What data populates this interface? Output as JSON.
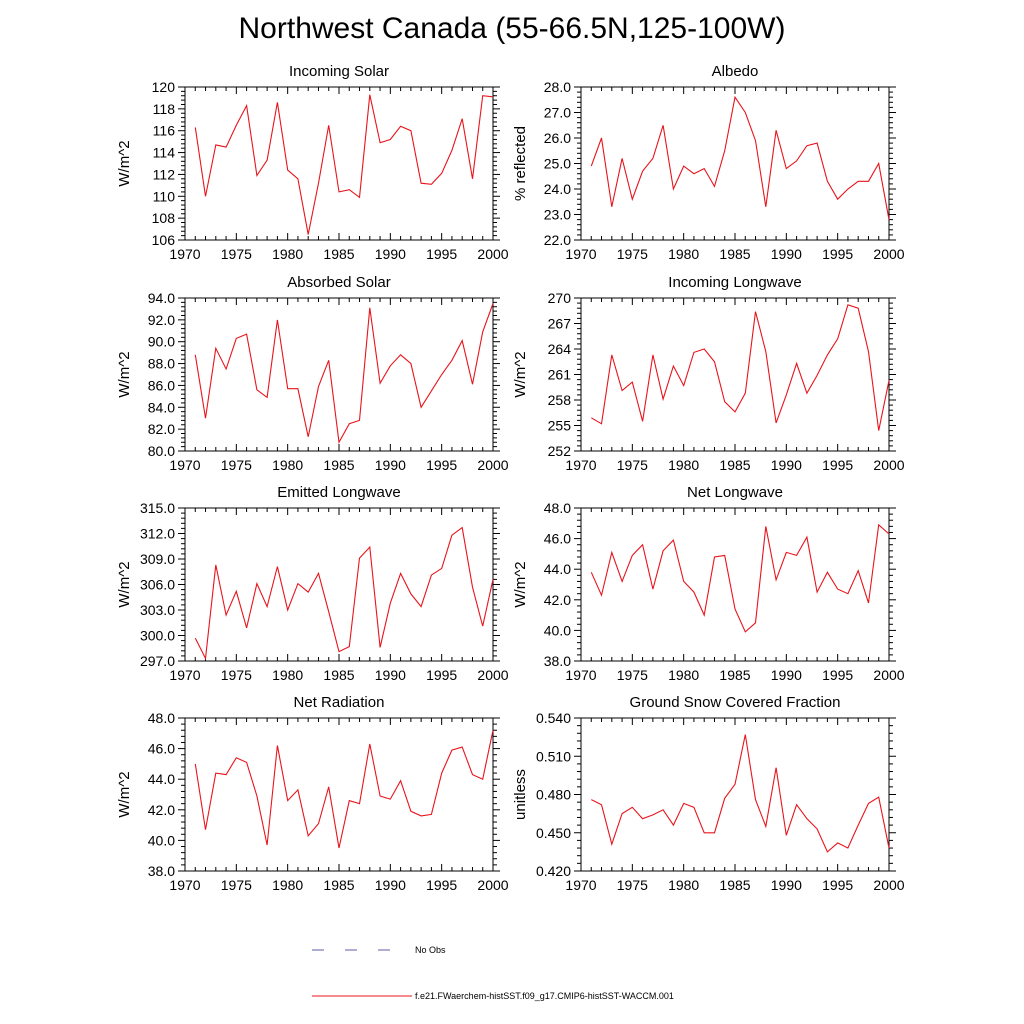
{
  "title": "Northwest Canada (55-66.5N,125-100W)",
  "colors": {
    "model": "#e8141c",
    "obs": "#5b5ea6"
  },
  "legend": {
    "obs_label": "No Obs",
    "model_label": "f.e21.FWaerchem-histSST.f09_g17.CMIP6-histSST-WACCM.001"
  },
  "chart_data": [
    {
      "type": "line",
      "title": "Incoming Solar",
      "ylabel": "W/m^2",
      "xlim": [
        1970,
        2000
      ],
      "ylim": [
        106,
        120
      ],
      "xticks": [
        1970,
        1975,
        1980,
        1985,
        1990,
        1995,
        2000
      ],
      "yticks": [
        106,
        108,
        110,
        112,
        114,
        116,
        118,
        120
      ],
      "ytick_labels": [
        "106",
        "108",
        "110",
        "112",
        "114",
        "116",
        "118",
        "120"
      ],
      "x": [
        1971,
        1972,
        1973,
        1974,
        1975,
        1976,
        1977,
        1978,
        1979,
        1980,
        1981,
        1982,
        1983,
        1984,
        1985,
        1986,
        1987,
        1988,
        1989,
        1990,
        1991,
        1992,
        1993,
        1994,
        1995,
        1996,
        1997,
        1998,
        1999,
        2000
      ],
      "series": [
        {
          "values": [
            116.3,
            110.0,
            114.7,
            114.5,
            116.5,
            118.3,
            111.9,
            113.3,
            118.6,
            112.4,
            111.6,
            106.5,
            111.2,
            116.5,
            110.4,
            110.6,
            109.9,
            119.3,
            114.9,
            115.2,
            116.4,
            116.0,
            111.2,
            111.1,
            112.1,
            114.2,
            117.1,
            111.6,
            119.2,
            119.1
          ]
        }
      ]
    },
    {
      "type": "line",
      "title": "Albedo",
      "ylabel": "% reflected",
      "xlim": [
        1970,
        2000
      ],
      "ylim": [
        22,
        28
      ],
      "xticks": [
        1970,
        1975,
        1980,
        1985,
        1990,
        1995,
        2000
      ],
      "yticks": [
        22,
        23,
        24,
        25,
        26,
        27,
        28
      ],
      "ytick_labels": [
        "22.0",
        "23.0",
        "24.0",
        "25.0",
        "26.0",
        "27.0",
        "28.0"
      ],
      "x": [
        1971,
        1972,
        1973,
        1974,
        1975,
        1976,
        1977,
        1978,
        1979,
        1980,
        1981,
        1982,
        1983,
        1984,
        1985,
        1986,
        1987,
        1988,
        1989,
        1990,
        1991,
        1992,
        1993,
        1994,
        1995,
        1996,
        1997,
        1998,
        1999,
        2000
      ],
      "series": [
        {
          "values": [
            24.9,
            26.0,
            23.3,
            25.2,
            23.6,
            24.7,
            25.2,
            26.5,
            24.0,
            24.9,
            24.6,
            24.8,
            24.1,
            25.5,
            27.6,
            27.0,
            25.9,
            23.3,
            26.3,
            24.8,
            25.1,
            25.7,
            25.8,
            24.3,
            23.6,
            24.0,
            24.3,
            24.3,
            25.0,
            22.8
          ]
        }
      ]
    },
    {
      "type": "line",
      "title": "Absorbed Solar",
      "ylabel": "W/m^2",
      "xlim": [
        1970,
        2000
      ],
      "ylim": [
        80,
        94
      ],
      "xticks": [
        1970,
        1975,
        1980,
        1985,
        1990,
        1995,
        2000
      ],
      "yticks": [
        80,
        82,
        84,
        86,
        88,
        90,
        92,
        94
      ],
      "ytick_labels": [
        "80.0",
        "82.0",
        "84.0",
        "86.0",
        "88.0",
        "90.0",
        "92.0",
        "94.0"
      ],
      "x": [
        1971,
        1972,
        1973,
        1974,
        1975,
        1976,
        1977,
        1978,
        1979,
        1980,
        1981,
        1982,
        1983,
        1984,
        1985,
        1986,
        1987,
        1988,
        1989,
        1990,
        1991,
        1992,
        1993,
        1994,
        1995,
        1996,
        1997,
        1998,
        1999,
        2000
      ],
      "series": [
        {
          "values": [
            88.8,
            83.0,
            89.4,
            87.5,
            90.3,
            90.7,
            85.6,
            84.9,
            92.0,
            85.7,
            85.7,
            81.3,
            85.9,
            88.3,
            80.8,
            82.5,
            82.8,
            93.1,
            86.2,
            87.8,
            88.8,
            88.0,
            84.0,
            85.5,
            87.0,
            88.3,
            90.1,
            86.1,
            90.9,
            93.5
          ]
        }
      ]
    },
    {
      "type": "line",
      "title": "Incoming Longwave",
      "ylabel": "W/m^2",
      "xlim": [
        1970,
        2000
      ],
      "ylim": [
        252,
        270
      ],
      "xticks": [
        1970,
        1975,
        1980,
        1985,
        1990,
        1995,
        2000
      ],
      "yticks": [
        252,
        255,
        258,
        261,
        264,
        267,
        270
      ],
      "ytick_labels": [
        "252",
        "255",
        "258",
        "261",
        "264",
        "267",
        "270"
      ],
      "x": [
        1971,
        1972,
        1973,
        1974,
        1975,
        1976,
        1977,
        1978,
        1979,
        1980,
        1981,
        1982,
        1983,
        1984,
        1985,
        1986,
        1987,
        1988,
        1989,
        1990,
        1991,
        1992,
        1993,
        1994,
        1995,
        1996,
        1997,
        1998,
        1999,
        2000
      ],
      "series": [
        {
          "values": [
            255.9,
            255.2,
            263.3,
            259.1,
            260.1,
            255.5,
            263.3,
            258.1,
            262.0,
            259.7,
            263.6,
            264.0,
            262.5,
            257.8,
            256.6,
            258.8,
            268.4,
            263.7,
            255.3,
            258.6,
            262.3,
            258.8,
            260.9,
            263.3,
            265.2,
            269.2,
            268.8,
            263.7,
            254.4,
            260.3
          ]
        }
      ]
    },
    {
      "type": "line",
      "title": "Emitted Longwave",
      "ylabel": "W/m^2",
      "xlim": [
        1970,
        2000
      ],
      "ylim": [
        297,
        315
      ],
      "xticks": [
        1970,
        1975,
        1980,
        1985,
        1990,
        1995,
        2000
      ],
      "yticks": [
        297,
        300,
        303,
        306,
        309,
        312,
        315
      ],
      "ytick_labels": [
        "297.0",
        "300.0",
        "303.0",
        "306.0",
        "309.0",
        "312.0",
        "315.0"
      ],
      "x": [
        1971,
        1972,
        1973,
        1974,
        1975,
        1976,
        1977,
        1978,
        1979,
        1980,
        1981,
        1982,
        1983,
        1984,
        1985,
        1986,
        1987,
        1988,
        1989,
        1990,
        1991,
        1992,
        1993,
        1994,
        1995,
        1996,
        1997,
        1998,
        1999,
        2000
      ],
      "series": [
        {
          "values": [
            299.7,
            297.3,
            308.3,
            302.4,
            305.2,
            300.9,
            306.1,
            303.4,
            308.1,
            303.0,
            306.1,
            305.1,
            307.3,
            302.8,
            298.1,
            298.7,
            309.1,
            310.4,
            298.6,
            303.8,
            307.3,
            304.9,
            303.4,
            307.1,
            307.9,
            311.8,
            312.7,
            305.7,
            301.1,
            306.6
          ]
        }
      ]
    },
    {
      "type": "line",
      "title": "Net Longwave",
      "ylabel": "W/m^2",
      "xlim": [
        1970,
        2000
      ],
      "ylim": [
        38,
        48
      ],
      "xticks": [
        1970,
        1975,
        1980,
        1985,
        1990,
        1995,
        2000
      ],
      "yticks": [
        38,
        40,
        42,
        44,
        46,
        48
      ],
      "ytick_labels": [
        "38.0",
        "40.0",
        "42.0",
        "44.0",
        "46.0",
        "48.0"
      ],
      "x": [
        1971,
        1972,
        1973,
        1974,
        1975,
        1976,
        1977,
        1978,
        1979,
        1980,
        1981,
        1982,
        1983,
        1984,
        1985,
        1986,
        1987,
        1988,
        1989,
        1990,
        1991,
        1992,
        1993,
        1994,
        1995,
        1996,
        1997,
        1998,
        1999,
        2000
      ],
      "series": [
        {
          "values": [
            43.8,
            42.3,
            45.1,
            43.2,
            44.9,
            45.6,
            42.7,
            45.2,
            45.9,
            43.2,
            42.5,
            41.0,
            44.8,
            44.9,
            41.4,
            39.9,
            40.5,
            46.8,
            43.3,
            45.1,
            44.9,
            46.1,
            42.5,
            43.8,
            42.7,
            42.4,
            43.9,
            41.8,
            46.9,
            46.3
          ]
        }
      ]
    },
    {
      "type": "line",
      "title": "Net Radiation",
      "ylabel": "W/m^2",
      "xlim": [
        1970,
        2000
      ],
      "ylim": [
        38,
        48
      ],
      "xticks": [
        1970,
        1975,
        1980,
        1985,
        1990,
        1995,
        2000
      ],
      "yticks": [
        38,
        40,
        42,
        44,
        46,
        48
      ],
      "ytick_labels": [
        "38.0",
        "40.0",
        "42.0",
        "44.0",
        "46.0",
        "48.0"
      ],
      "x": [
        1971,
        1972,
        1973,
        1974,
        1975,
        1976,
        1977,
        1978,
        1979,
        1980,
        1981,
        1982,
        1983,
        1984,
        1985,
        1986,
        1987,
        1988,
        1989,
        1990,
        1991,
        1992,
        1993,
        1994,
        1995,
        1996,
        1997,
        1998,
        1999,
        2000
      ],
      "series": [
        {
          "values": [
            45.0,
            40.7,
            44.4,
            44.3,
            45.4,
            45.1,
            42.9,
            39.7,
            46.2,
            42.6,
            43.3,
            40.3,
            41.1,
            43.5,
            39.5,
            42.6,
            42.4,
            46.3,
            42.9,
            42.7,
            43.9,
            41.9,
            41.6,
            41.7,
            44.4,
            45.9,
            46.1,
            44.3,
            44.0,
            47.2
          ]
        }
      ]
    },
    {
      "type": "line",
      "title": "Ground Snow Covered Fraction",
      "ylabel": "unitless",
      "xlim": [
        1970,
        2000
      ],
      "ylim": [
        0.42,
        0.54
      ],
      "xticks": [
        1970,
        1975,
        1980,
        1985,
        1990,
        1995,
        2000
      ],
      "yticks": [
        0.42,
        0.45,
        0.48,
        0.51,
        0.54
      ],
      "ytick_labels": [
        "0.420",
        "0.450",
        "0.480",
        "0.510",
        "0.540"
      ],
      "x": [
        1971,
        1972,
        1973,
        1974,
        1975,
        1976,
        1977,
        1978,
        1979,
        1980,
        1981,
        1982,
        1983,
        1984,
        1985,
        1986,
        1987,
        1988,
        1989,
        1990,
        1991,
        1992,
        1993,
        1994,
        1995,
        1996,
        1997,
        1998,
        1999,
        2000
      ],
      "series": [
        {
          "values": [
            0.476,
            0.472,
            0.441,
            0.465,
            0.47,
            0.461,
            0.464,
            0.468,
            0.456,
            0.473,
            0.47,
            0.45,
            0.45,
            0.477,
            0.488,
            0.527,
            0.476,
            0.455,
            0.501,
            0.448,
            0.472,
            0.461,
            0.453,
            0.435,
            0.442,
            0.438,
            0.456,
            0.473,
            0.478,
            0.438
          ]
        }
      ]
    }
  ]
}
